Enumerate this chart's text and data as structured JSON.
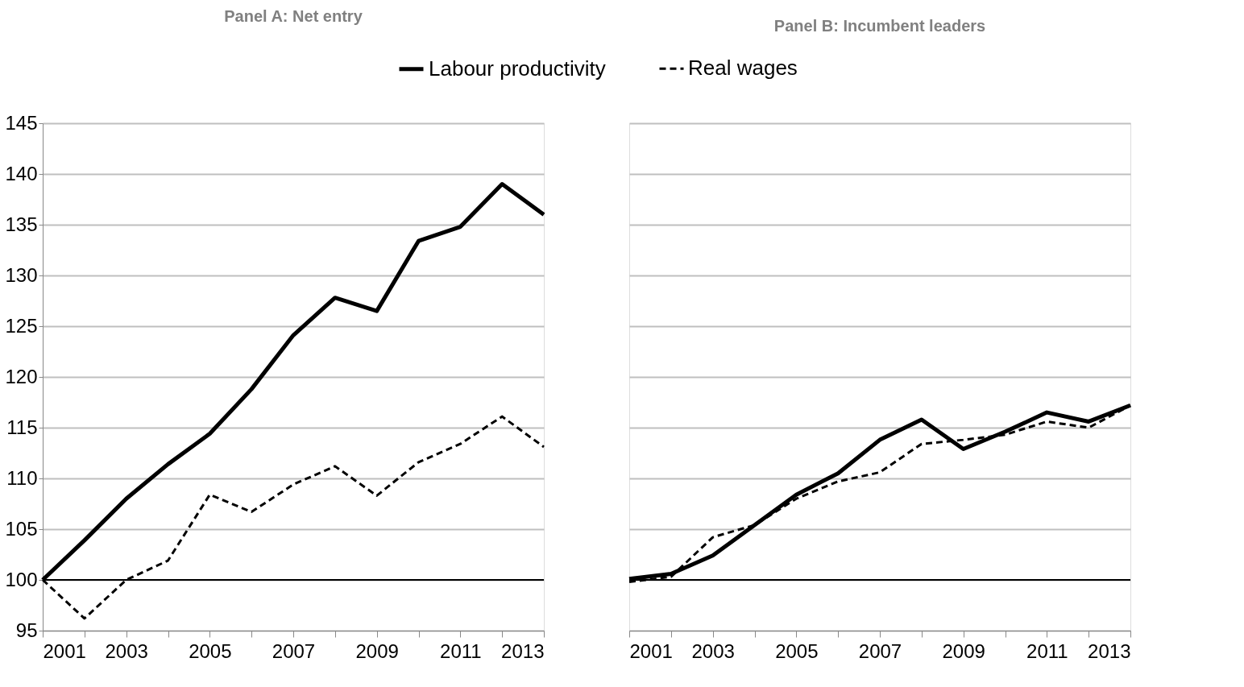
{
  "chart_data": [
    {
      "type": "line",
      "title": "Panel A: Net entry",
      "x": [
        2001,
        2002,
        2003,
        2004,
        2005,
        2006,
        2007,
        2008,
        2009,
        2010,
        2011,
        2012,
        2013
      ],
      "series": [
        {
          "name": "Labour productivity",
          "color": "#000000",
          "line_style": "solid",
          "values": [
            100,
            103.9,
            108.0,
            111.4,
            114.4,
            118.8,
            124.1,
            127.8,
            126.5,
            133.4,
            134.8,
            139.0,
            136.0
          ]
        },
        {
          "name": "Real wages",
          "color": "#000000",
          "line_style": "dashed",
          "values": [
            100,
            96.2,
            100.0,
            101.9,
            108.4,
            106.7,
            109.4,
            111.2,
            108.3,
            111.6,
            113.4,
            116.1,
            113.1
          ]
        }
      ],
      "xlim": [
        2001,
        2013
      ],
      "xticks": [
        2001,
        {
          "value": 2002,
          "label": null
        },
        2003,
        {
          "value": 2004,
          "label": null
        },
        2005,
        {
          "value": 2006,
          "label": null
        },
        2007,
        {
          "value": 2008,
          "label": null
        },
        2009,
        {
          "value": 2010,
          "label": null
        },
        2011,
        {
          "value": 2012,
          "label": null
        },
        2013
      ],
      "ylim": [
        95,
        145
      ],
      "yticks": [
        95,
        100,
        105,
        110,
        115,
        120,
        125,
        130,
        135,
        140,
        145
      ],
      "ref_lines": [
        {
          "axis": "y",
          "value": 100,
          "color": "#000000"
        }
      ],
      "grid": "y",
      "legend": "top"
    },
    {
      "type": "line",
      "title": "Panel B: Incumbent leaders",
      "x": [
        2001,
        2002,
        2003,
        2004,
        2005,
        2006,
        2007,
        2008,
        2009,
        2010,
        2011,
        2012,
        2013
      ],
      "series": [
        {
          "name": "Labour productivity",
          "color": "#000000",
          "line_style": "solid",
          "values": [
            100.1,
            100.6,
            102.4,
            105.4,
            108.4,
            110.5,
            113.8,
            115.8,
            112.9,
            114.6,
            116.5,
            115.6,
            117.2
          ]
        },
        {
          "name": "Real wages",
          "color": "#000000",
          "line_style": "dashed",
          "values": [
            99.8,
            100.3,
            104.2,
            105.4,
            108.0,
            109.7,
            110.6,
            113.4,
            113.8,
            114.3,
            115.6,
            115.0,
            117.2
          ]
        }
      ],
      "xlim": [
        2001,
        2013
      ],
      "xticks": [
        2001,
        {
          "value": 2002,
          "label": null
        },
        2003,
        {
          "value": 2004,
          "label": null
        },
        2005,
        {
          "value": 2006,
          "label": null
        },
        2007,
        {
          "value": 2008,
          "label": null
        },
        2009,
        {
          "value": 2010,
          "label": null
        },
        2011,
        {
          "value": 2012,
          "label": null
        },
        2013
      ],
      "ylim": [
        95,
        145
      ],
      "yticks": [
        95,
        100,
        105,
        110,
        115,
        120,
        125,
        130,
        135,
        140,
        145
      ],
      "ref_lines": [
        {
          "axis": "y",
          "value": 100,
          "color": "#000000"
        }
      ],
      "grid": "y",
      "legend": "top",
      "tick_labels": "x"
    }
  ]
}
